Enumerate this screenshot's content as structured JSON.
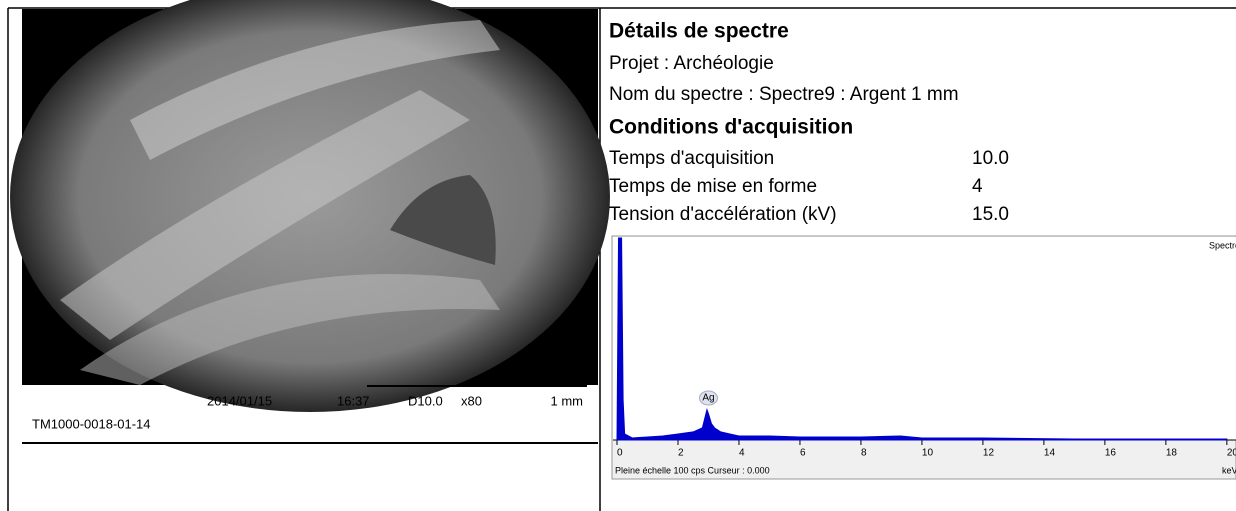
{
  "image_info": {
    "date": "2014/01/15",
    "time": "16:37",
    "distance": "D10.0",
    "magnification": "x80",
    "scale": "1 mm",
    "instrument": "TM1000-0018-01-14"
  },
  "details": {
    "title": "Détails de spectre",
    "project": "Projet : Archéologie",
    "spectrum_name": "Nom du spectre : Spectre9 : Argent 1 mm",
    "conditions_title": "Conditions d'acquisition",
    "rows": [
      [
        "Temps d'acquisition",
        "10.0"
      ],
      [
        "Temps de mise en forme",
        "4"
      ],
      [
        "Tension d'accélération (kV)",
        "15.0"
      ]
    ]
  },
  "spectrum": {
    "type": "area",
    "name": "Spectre9",
    "color": "#0000cc",
    "peak_label": "Ag",
    "peak_x": 3.0,
    "footer": "Pleine échelle 100 cps  Curseur : 0.000",
    "x_unit": "keV",
    "xlim": [
      0,
      20.3
    ],
    "ylim": [
      0,
      100
    ],
    "xticks": [
      0,
      2,
      4,
      6,
      8,
      10,
      12,
      14,
      16,
      18,
      20
    ],
    "x": [
      0,
      0.05,
      0.15,
      0.2,
      0.25,
      0.5,
      1.0,
      1.5,
      2.0,
      2.5,
      2.8,
      2.95,
      3.0,
      3.1,
      3.2,
      3.4,
      3.7,
      4.0,
      5,
      6,
      8,
      9.3,
      10,
      12,
      15,
      20
    ],
    "values": [
      0,
      100,
      100,
      20,
      3,
      1,
      1.5,
      2,
      3,
      4,
      6,
      15,
      13,
      8,
      6,
      4,
      3,
      2,
      2,
      1.5,
      1.5,
      2,
      1,
      1,
      0.5,
      0.5
    ]
  }
}
